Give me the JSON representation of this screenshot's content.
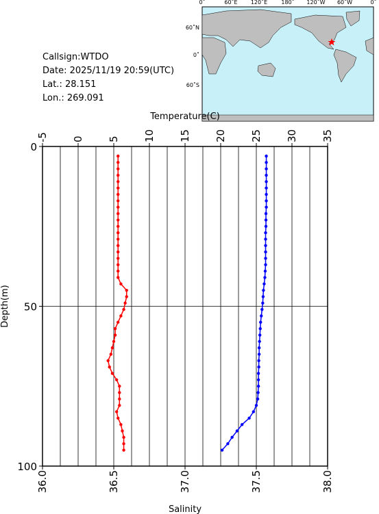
{
  "info": [
    "Callsign:WTDO",
    "Date:  2025/11/19 20:59(UTC)",
    "Lat.:  28.151",
    "Lon.:  269.091"
  ],
  "map": {
    "top_labels": [
      "0˚",
      "60˚E",
      "120˚E",
      "180˚",
      "120˚W",
      "60˚W",
      "0˚"
    ],
    "left_labels": [
      "60˚N",
      "0˚",
      "60˚S"
    ]
  },
  "chart_data": {
    "type": "profile",
    "x_label": "Salinity",
    "x2_label": "Temperature(C)",
    "y_label": "Depth(m)",
    "xlim": [
      36,
      38
    ],
    "xticks": [
      {
        "value": 36,
        "label": "36.0"
      },
      36.5,
      {
        "value": 37,
        "label": "37.0"
      },
      37.5,
      {
        "value": 38,
        "label": "38.0"
      }
    ],
    "x2lim": [
      -5,
      35
    ],
    "x2ticks": [
      -5,
      0,
      5,
      10,
      15,
      20,
      25,
      30,
      35
    ],
    "ylim": [
      0,
      100
    ],
    "yticks": [
      0,
      50,
      100
    ],
    "y_inverted": true,
    "xgrid": [
      36.125,
      36.25,
      36.375,
      36.5,
      36.625,
      36.75,
      36.875,
      37,
      37.125,
      37.25,
      37.375,
      37.5,
      37.625,
      37.75,
      37.875
    ],
    "ygrid": [
      50
    ],
    "depth": [
      3,
      5,
      7,
      9,
      11,
      13,
      15,
      17,
      19,
      21,
      23,
      25,
      27,
      29,
      31,
      33,
      35,
      37,
      39,
      41,
      43,
      45,
      47,
      49,
      51,
      53,
      55,
      57,
      59,
      61,
      63,
      65,
      67,
      69,
      71,
      73,
      75,
      77,
      79,
      81,
      83,
      85,
      87,
      89,
      91,
      93,
      95
    ],
    "series": [
      {
        "color": "#0000ff",
        "axis": "x2",
        "values": [
          26.4,
          26.4,
          26.4,
          26.4,
          26.4,
          26.4,
          26.4,
          26.4,
          26.4,
          26.35,
          26.35,
          26.35,
          26.3,
          26.3,
          26.3,
          26.3,
          26.3,
          26.3,
          26.25,
          26.2,
          26.1,
          26.0,
          25.95,
          25.9,
          25.8,
          25.7,
          25.6,
          25.55,
          25.5,
          25.45,
          25.4,
          25.4,
          25.35,
          25.35,
          25.3,
          25.3,
          25.3,
          25.25,
          25.2,
          25.0,
          24.6,
          24.0,
          23.0,
          22.3,
          21.6,
          21.0,
          20.2
        ]
      },
      {
        "color": "#ff0000",
        "axis": "x",
        "values": [
          36.53,
          36.53,
          36.53,
          36.53,
          36.53,
          36.53,
          36.53,
          36.53,
          36.53,
          36.53,
          36.53,
          36.53,
          36.53,
          36.53,
          36.53,
          36.53,
          36.53,
          36.53,
          36.53,
          36.53,
          36.55,
          36.59,
          36.59,
          36.58,
          36.57,
          36.55,
          36.53,
          36.51,
          36.51,
          36.5,
          36.49,
          36.48,
          36.46,
          36.47,
          36.49,
          36.52,
          36.54,
          36.54,
          36.54,
          36.54,
          36.52,
          36.53,
          36.55,
          36.56,
          36.57,
          36.57,
          36.57
        ]
      }
    ]
  }
}
